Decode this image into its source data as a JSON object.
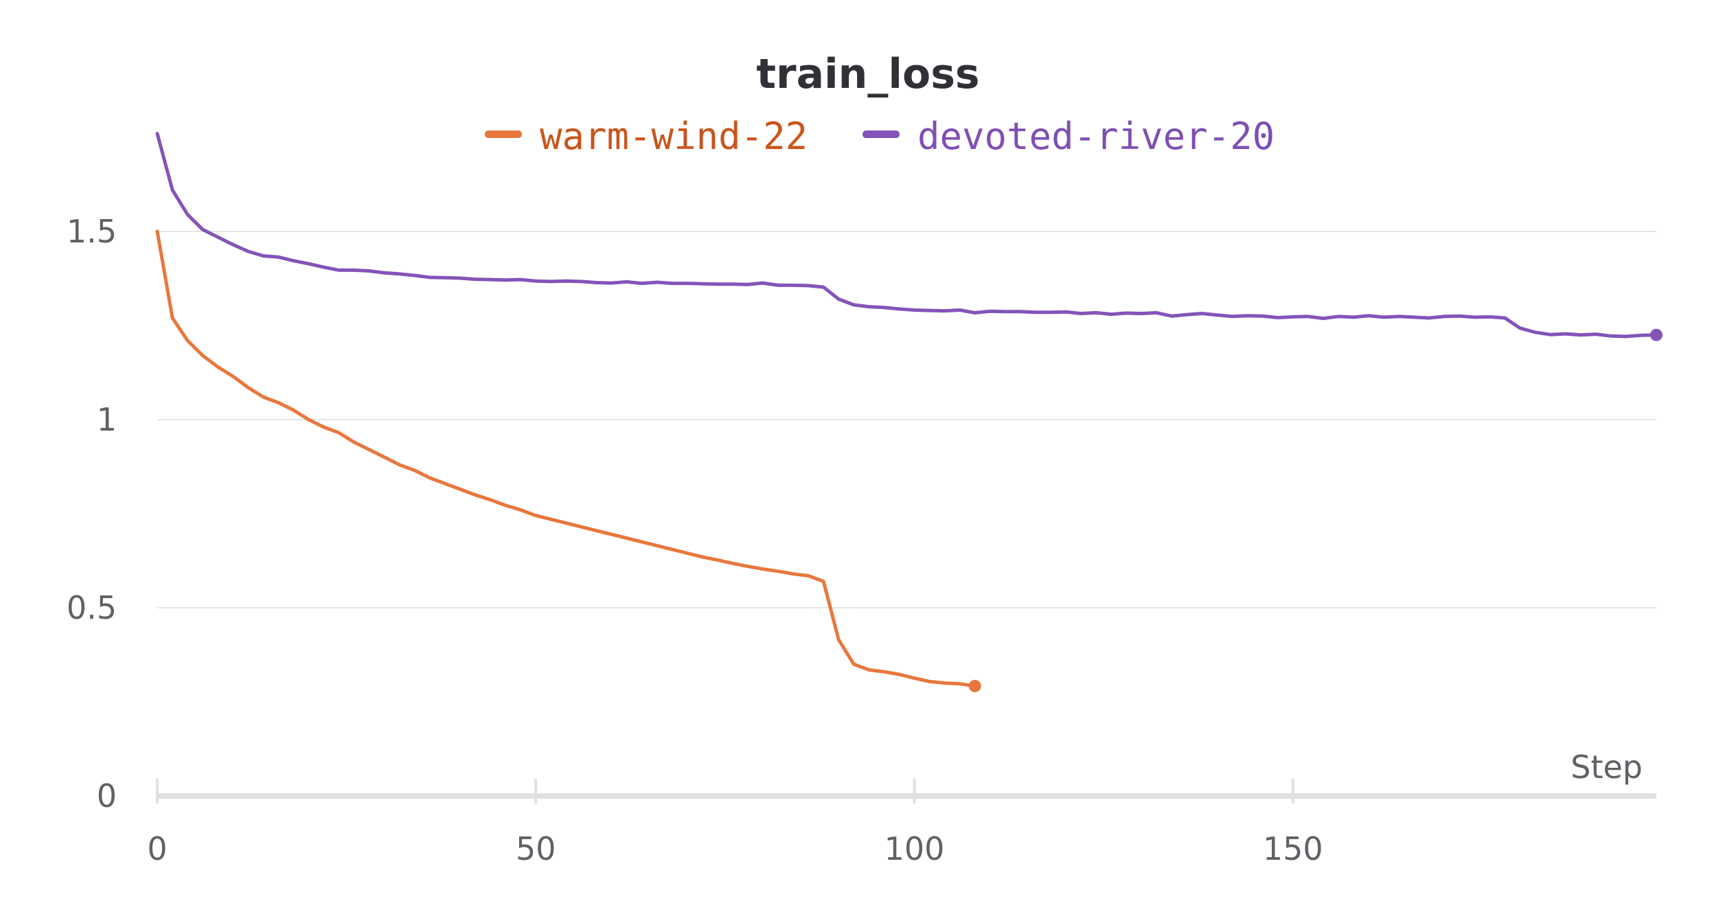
{
  "chart_data": {
    "type": "line",
    "title": "train_loss",
    "xlabel": "Step",
    "ylabel": "",
    "xlim": [
      0,
      198
    ],
    "ylim": [
      0,
      1.75
    ],
    "x_ticks": [
      0,
      50,
      100,
      150
    ],
    "x_tick_labels": [
      "0",
      "50",
      "100",
      "150"
    ],
    "y_ticks": [
      0,
      0.5,
      1,
      1.5
    ],
    "y_tick_labels": [
      "0",
      "0.5",
      "1",
      "1.5"
    ],
    "grid": true,
    "legend": "top-center",
    "series": [
      {
        "name": "warm-wind-22",
        "color": "#e8773d",
        "label_color": "#c9551c",
        "end_marker": true,
        "x": [
          0,
          2,
          4,
          6,
          8,
          10,
          12,
          14,
          16,
          18,
          20,
          22,
          24,
          26,
          28,
          30,
          32,
          34,
          36,
          38,
          40,
          42,
          44,
          46,
          48,
          50,
          52,
          54,
          56,
          58,
          60,
          62,
          64,
          66,
          68,
          70,
          72,
          74,
          76,
          78,
          80,
          82,
          84,
          86,
          88,
          90,
          92,
          94,
          96,
          98,
          100,
          102,
          104,
          106,
          108
        ],
        "y": [
          1.5,
          1.27,
          1.21,
          1.17,
          1.14,
          1.115,
          1.085,
          1.06,
          1.045,
          1.025,
          1.0,
          0.98,
          0.965,
          0.94,
          0.92,
          0.9,
          0.88,
          0.865,
          0.845,
          0.83,
          0.815,
          0.8,
          0.787,
          0.772,
          0.76,
          0.745,
          0.735,
          0.725,
          0.715,
          0.705,
          0.695,
          0.685,
          0.675,
          0.665,
          0.655,
          0.645,
          0.635,
          0.627,
          0.618,
          0.61,
          0.603,
          0.597,
          0.59,
          0.585,
          0.57,
          0.415,
          0.35,
          0.335,
          0.33,
          0.323,
          0.313,
          0.304,
          0.3,
          0.298,
          0.292
        ]
      },
      {
        "name": "devoted-river-20",
        "color": "#8454b8",
        "label_color": "#7e4fb3",
        "end_marker": true,
        "x": [
          0,
          2,
          4,
          6,
          8,
          10,
          12,
          14,
          16,
          18,
          20,
          22,
          24,
          26,
          28,
          30,
          32,
          34,
          36,
          38,
          40,
          42,
          44,
          46,
          48,
          50,
          52,
          54,
          56,
          58,
          60,
          62,
          64,
          66,
          68,
          70,
          72,
          74,
          76,
          78,
          80,
          82,
          84,
          86,
          88,
          90,
          92,
          94,
          96,
          98,
          100,
          102,
          104,
          106,
          108,
          110,
          112,
          114,
          116,
          118,
          120,
          122,
          124,
          126,
          128,
          130,
          132,
          134,
          136,
          138,
          140,
          142,
          144,
          146,
          148,
          150,
          152,
          154,
          156,
          158,
          160,
          162,
          164,
          166,
          168,
          170,
          172,
          174,
          176,
          178,
          180,
          182,
          184,
          186,
          188,
          190,
          192,
          194,
          196,
          198
        ],
        "y": [
          1.76,
          1.61,
          1.545,
          1.505,
          1.485,
          1.465,
          1.447,
          1.435,
          1.432,
          1.422,
          1.414,
          1.405,
          1.397,
          1.397,
          1.395,
          1.39,
          1.387,
          1.383,
          1.378,
          1.377,
          1.376,
          1.373,
          1.372,
          1.371,
          1.372,
          1.368,
          1.367,
          1.368,
          1.367,
          1.364,
          1.363,
          1.366,
          1.362,
          1.365,
          1.362,
          1.362,
          1.361,
          1.36,
          1.36,
          1.359,
          1.363,
          1.357,
          1.357,
          1.356,
          1.352,
          1.32,
          1.305,
          1.3,
          1.298,
          1.294,
          1.291,
          1.29,
          1.289,
          1.291,
          1.284,
          1.288,
          1.287,
          1.287,
          1.285,
          1.285,
          1.286,
          1.282,
          1.284,
          1.28,
          1.283,
          1.282,
          1.284,
          1.275,
          1.279,
          1.282,
          1.278,
          1.274,
          1.276,
          1.275,
          1.271,
          1.273,
          1.274,
          1.269,
          1.274,
          1.272,
          1.276,
          1.272,
          1.274,
          1.272,
          1.27,
          1.274,
          1.275,
          1.272,
          1.273,
          1.27,
          1.243,
          1.232,
          1.226,
          1.228,
          1.225,
          1.227,
          1.222,
          1.221,
          1.224,
          1.225
        ]
      }
    ]
  }
}
